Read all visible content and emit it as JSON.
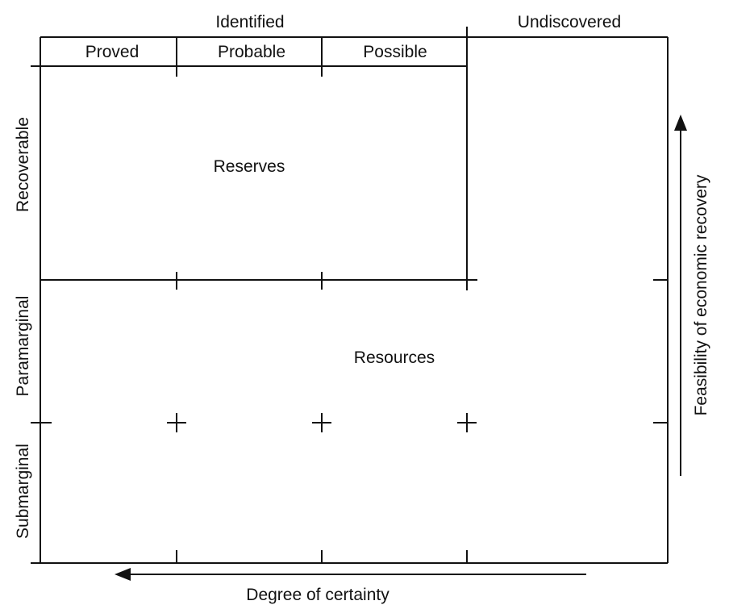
{
  "headers": {
    "identified": "Identified",
    "undiscovered": "Undiscovered",
    "proved": "Proved",
    "probable": "Probable",
    "possible": "Possible"
  },
  "rows": {
    "recoverable": "Recoverable",
    "paramarginal": "Paramarginal",
    "submarginal": "Submarginal"
  },
  "regions": {
    "reserves": "Reserves",
    "resources": "Resources"
  },
  "axes": {
    "x_label": "Degree of certainty",
    "y_label": "Feasibility of economic recovery"
  }
}
